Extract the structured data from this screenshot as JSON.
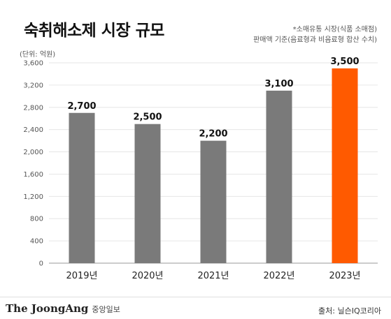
{
  "header": {
    "title": "숙취해소제 시장 규모",
    "note_line1": "*소매유통 시장(식품 소매점)",
    "note_line2": "판매액 기준(음료형과 비음료형 합산 수치)",
    "unit": "(단위: 억원)"
  },
  "footer": {
    "brand_name": "The JoongAng",
    "brand_korean": "중앙일보",
    "source": "출처: 닐슨IQ코리아"
  },
  "colors": {
    "bar_default": "#7a7a7a",
    "bar_highlight": "#ff5a00",
    "gridline": "#e6e6e6",
    "axis": "#999999"
  },
  "chart_data": {
    "type": "bar",
    "categories": [
      "2019년",
      "2020년",
      "2021년",
      "2022년",
      "2023년"
    ],
    "values": [
      2700,
      2500,
      2200,
      3100,
      3500
    ],
    "data_labels": [
      "2,700",
      "2,500",
      "2,200",
      "3,100",
      "3,500"
    ],
    "highlight_index": 4,
    "yticks": [
      0,
      400,
      800,
      1200,
      1600,
      2000,
      2400,
      2800,
      3200,
      3600
    ],
    "ytick_labels": [
      "0",
      "400",
      "800",
      "1,200",
      "1,600",
      "2,000",
      "2,400",
      "2,800",
      "3,200",
      "3,600"
    ],
    "ylim": [
      0,
      3600
    ],
    "grid": true,
    "title": "숙취해소제 시장 규모",
    "ylabel": "(단위: 억원)",
    "xlabel": ""
  }
}
